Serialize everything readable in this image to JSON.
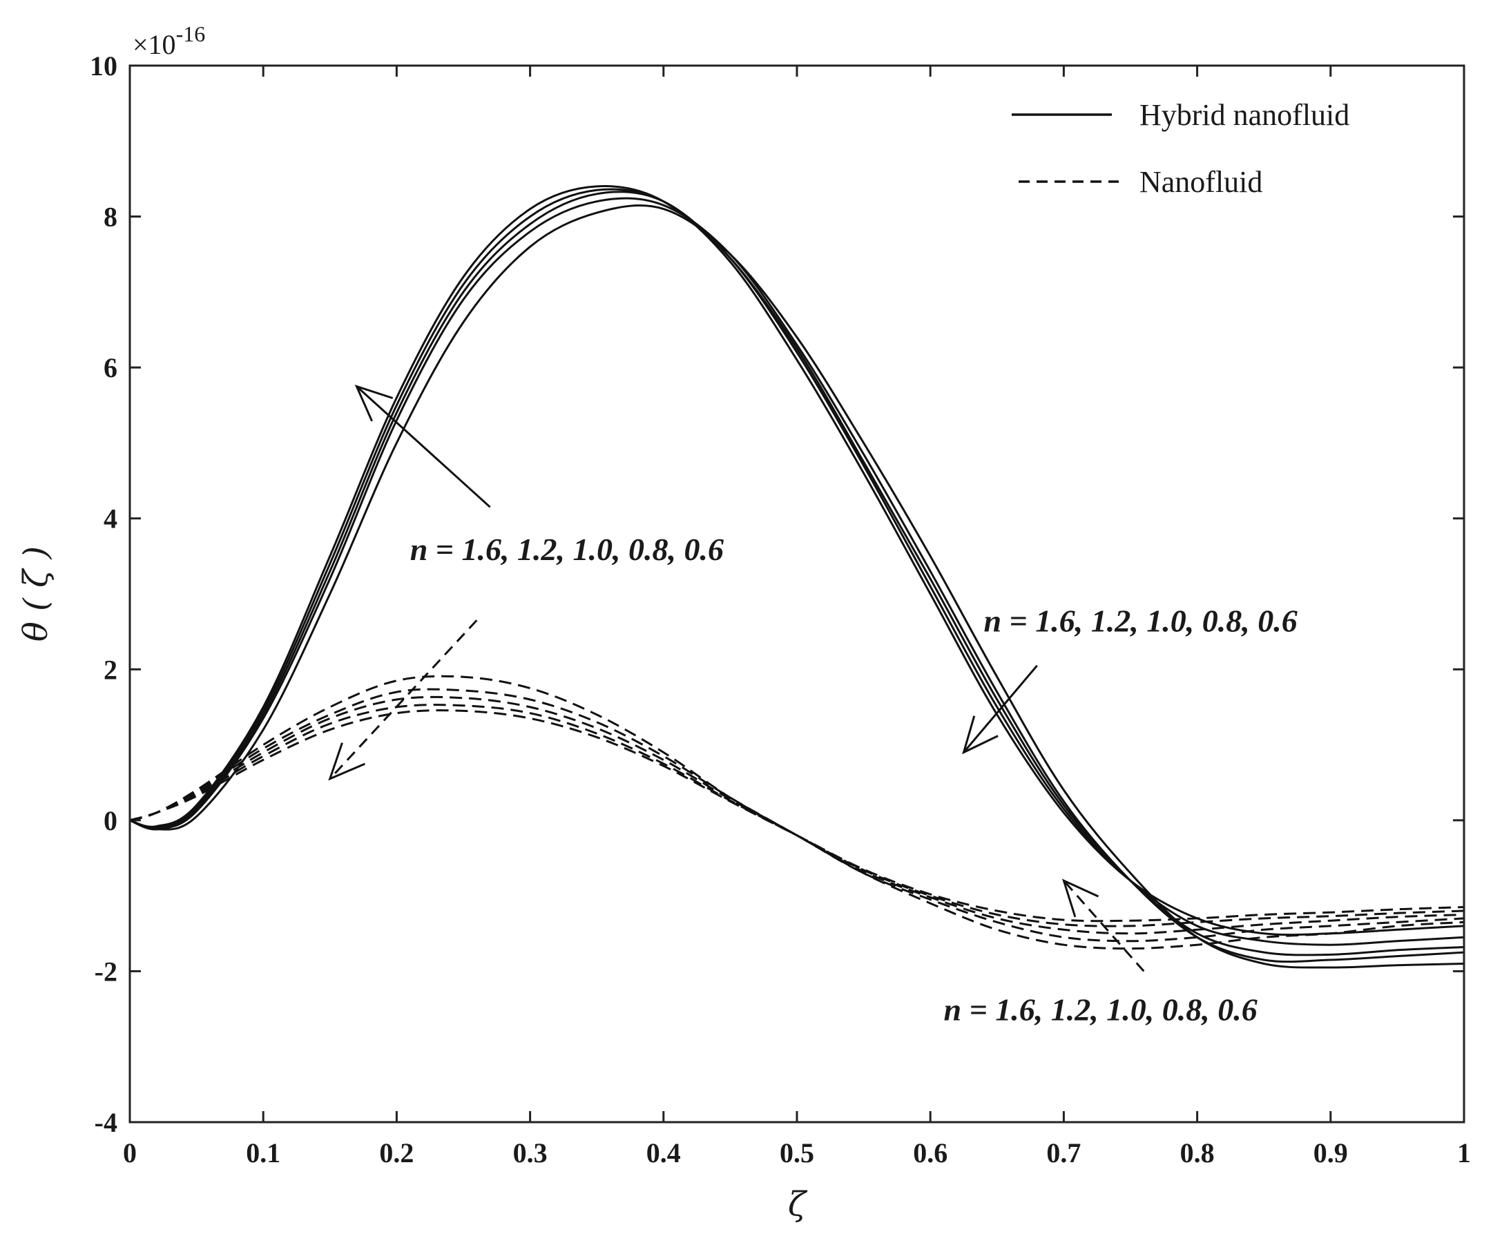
{
  "chart_data": {
    "type": "line",
    "title": "",
    "xlabel": "ζ",
    "ylabel": "θ ( ζ )",
    "y_scale_label": "×10",
    "y_scale_exponent": "-16",
    "xlim": [
      0,
      1
    ],
    "ylim": [
      -4,
      10
    ],
    "xticks": [
      0,
      0.1,
      0.2,
      0.3,
      0.4,
      0.5,
      0.6,
      0.7,
      0.8,
      0.9,
      1
    ],
    "xtick_labels": [
      "0",
      "0.1",
      "0.2",
      "0.3",
      "0.4",
      "0.5",
      "0.6",
      "0.7",
      "0.8",
      "0.9",
      "1"
    ],
    "yticks": [
      -4,
      -2,
      0,
      2,
      4,
      6,
      8,
      10
    ],
    "ytick_labels": [
      "-4",
      "-2",
      "0",
      "2",
      "4",
      "6",
      "8",
      "10"
    ],
    "legend": {
      "position": "top-right",
      "entries": [
        {
          "label": "Hybrid nanofluid",
          "style": "solid"
        },
        {
          "label": "Nanofluid",
          "style": "dashed"
        }
      ]
    },
    "x": [
      0,
      0.02,
      0.05,
      0.1,
      0.15,
      0.2,
      0.25,
      0.3,
      0.35,
      0.4,
      0.45,
      0.5,
      0.55,
      0.6,
      0.65,
      0.7,
      0.75,
      0.8,
      0.85,
      0.9,
      0.95,
      1.0
    ],
    "series": [
      {
        "name": "Hybrid nanofluid n = 1.6",
        "group": "hybrid",
        "style": "solid",
        "values": [
          0,
          -0.08,
          0.2,
          1.5,
          3.5,
          5.6,
          7.2,
          8.1,
          8.4,
          8.2,
          7.4,
          6.1,
          4.6,
          3.0,
          1.4,
          0.1,
          -0.8,
          -1.3,
          -1.5,
          -1.5,
          -1.45,
          -1.4
        ]
      },
      {
        "name": "Hybrid nanofluid n = 1.2",
        "group": "hybrid",
        "style": "solid",
        "values": [
          0,
          -0.09,
          0.18,
          1.45,
          3.4,
          5.5,
          7.1,
          8.0,
          8.35,
          8.2,
          7.45,
          6.2,
          4.7,
          3.1,
          1.5,
          0.15,
          -0.8,
          -1.4,
          -1.6,
          -1.65,
          -1.6,
          -1.55
        ]
      },
      {
        "name": "Hybrid nanofluid n = 1.0",
        "group": "hybrid",
        "style": "solid",
        "values": [
          0,
          -0.1,
          0.15,
          1.4,
          3.3,
          5.4,
          7.0,
          7.9,
          8.3,
          8.2,
          7.45,
          6.25,
          4.75,
          3.2,
          1.6,
          0.2,
          -0.8,
          -1.5,
          -1.75,
          -1.78,
          -1.72,
          -1.68
        ]
      },
      {
        "name": "Hybrid nanofluid n = 0.8",
        "group": "hybrid",
        "style": "solid",
        "values": [
          0,
          -0.11,
          0.12,
          1.35,
          3.2,
          5.3,
          6.9,
          7.8,
          8.2,
          8.15,
          7.5,
          6.3,
          4.85,
          3.3,
          1.7,
          0.25,
          -0.8,
          -1.55,
          -1.85,
          -1.85,
          -1.8,
          -1.75
        ]
      },
      {
        "name": "Hybrid nanofluid n = 0.6",
        "group": "hybrid",
        "style": "solid",
        "values": [
          0,
          -0.12,
          0.05,
          1.2,
          3.0,
          5.0,
          6.6,
          7.6,
          8.05,
          8.1,
          7.5,
          6.4,
          5.0,
          3.5,
          1.9,
          0.4,
          -0.7,
          -1.55,
          -1.9,
          -1.95,
          -1.92,
          -1.9
        ]
      },
      {
        "name": "Nanofluid n = 1.6",
        "group": "nano",
        "style": "dashed",
        "values": [
          0,
          0.1,
          0.4,
          1.0,
          1.5,
          1.85,
          1.9,
          1.75,
          1.4,
          0.9,
          0.3,
          -0.2,
          -0.7,
          -1.1,
          -1.45,
          -1.65,
          -1.7,
          -1.65,
          -1.55,
          -1.5,
          -1.4,
          -1.35
        ]
      },
      {
        "name": "Nanofluid n = 1.2",
        "group": "nano",
        "style": "dashed",
        "values": [
          0,
          0.1,
          0.38,
          0.95,
          1.4,
          1.7,
          1.72,
          1.6,
          1.3,
          0.85,
          0.3,
          -0.2,
          -0.7,
          -1.05,
          -1.35,
          -1.55,
          -1.6,
          -1.55,
          -1.45,
          -1.4,
          -1.35,
          -1.3
        ]
      },
      {
        "name": "Nanofluid n = 1.0",
        "group": "nano",
        "style": "dashed",
        "values": [
          0,
          0.1,
          0.36,
          0.9,
          1.35,
          1.6,
          1.62,
          1.5,
          1.22,
          0.8,
          0.28,
          -0.2,
          -0.68,
          -1.02,
          -1.3,
          -1.45,
          -1.5,
          -1.45,
          -1.38,
          -1.33,
          -1.28,
          -1.25
        ]
      },
      {
        "name": "Nanofluid n = 0.8",
        "group": "nano",
        "style": "dashed",
        "values": [
          0,
          0.1,
          0.34,
          0.85,
          1.28,
          1.5,
          1.52,
          1.42,
          1.15,
          0.75,
          0.26,
          -0.2,
          -0.66,
          -1.0,
          -1.25,
          -1.38,
          -1.4,
          -1.35,
          -1.3,
          -1.27,
          -1.23,
          -1.2
        ]
      },
      {
        "name": "Nanofluid n = 0.6",
        "group": "nano",
        "style": "dashed",
        "values": [
          0,
          0.1,
          0.32,
          0.8,
          1.2,
          1.42,
          1.45,
          1.35,
          1.1,
          0.72,
          0.25,
          -0.2,
          -0.65,
          -0.98,
          -1.2,
          -1.32,
          -1.33,
          -1.3,
          -1.25,
          -1.22,
          -1.18,
          -1.15
        ]
      }
    ],
    "annotations": [
      {
        "text": "n = 1.6, 1.2, 1.0, 0.8, 0.6",
        "at": [
          0.21,
          3.45
        ],
        "arrow_from": [
          0.27,
          4.15
        ],
        "arrow_to": [
          0.17,
          5.75
        ],
        "arrow_style": "solid"
      },
      {
        "text": "n = 1.6, 1.2, 1.0, 0.8, 0.6",
        "at": [
          0.64,
          2.5
        ],
        "arrow_from": [
          0.68,
          2.05
        ],
        "arrow_to": [
          0.625,
          0.9
        ],
        "arrow_style": "solid"
      },
      {
        "text": "n = 1.6, 1.2, 1.0, 0.8, 0.6",
        "at": [
          0.61,
          -2.65
        ],
        "arrow_from": [
          0.76,
          -2.0
        ],
        "arrow_to": [
          0.7,
          -0.8
        ],
        "arrow_style": "dashed"
      },
      {
        "text": "",
        "at": [
          0.26,
          2.65
        ],
        "arrow_from": [
          0.26,
          2.65
        ],
        "arrow_to": [
          0.15,
          0.55
        ],
        "arrow_style": "dashed"
      }
    ]
  }
}
